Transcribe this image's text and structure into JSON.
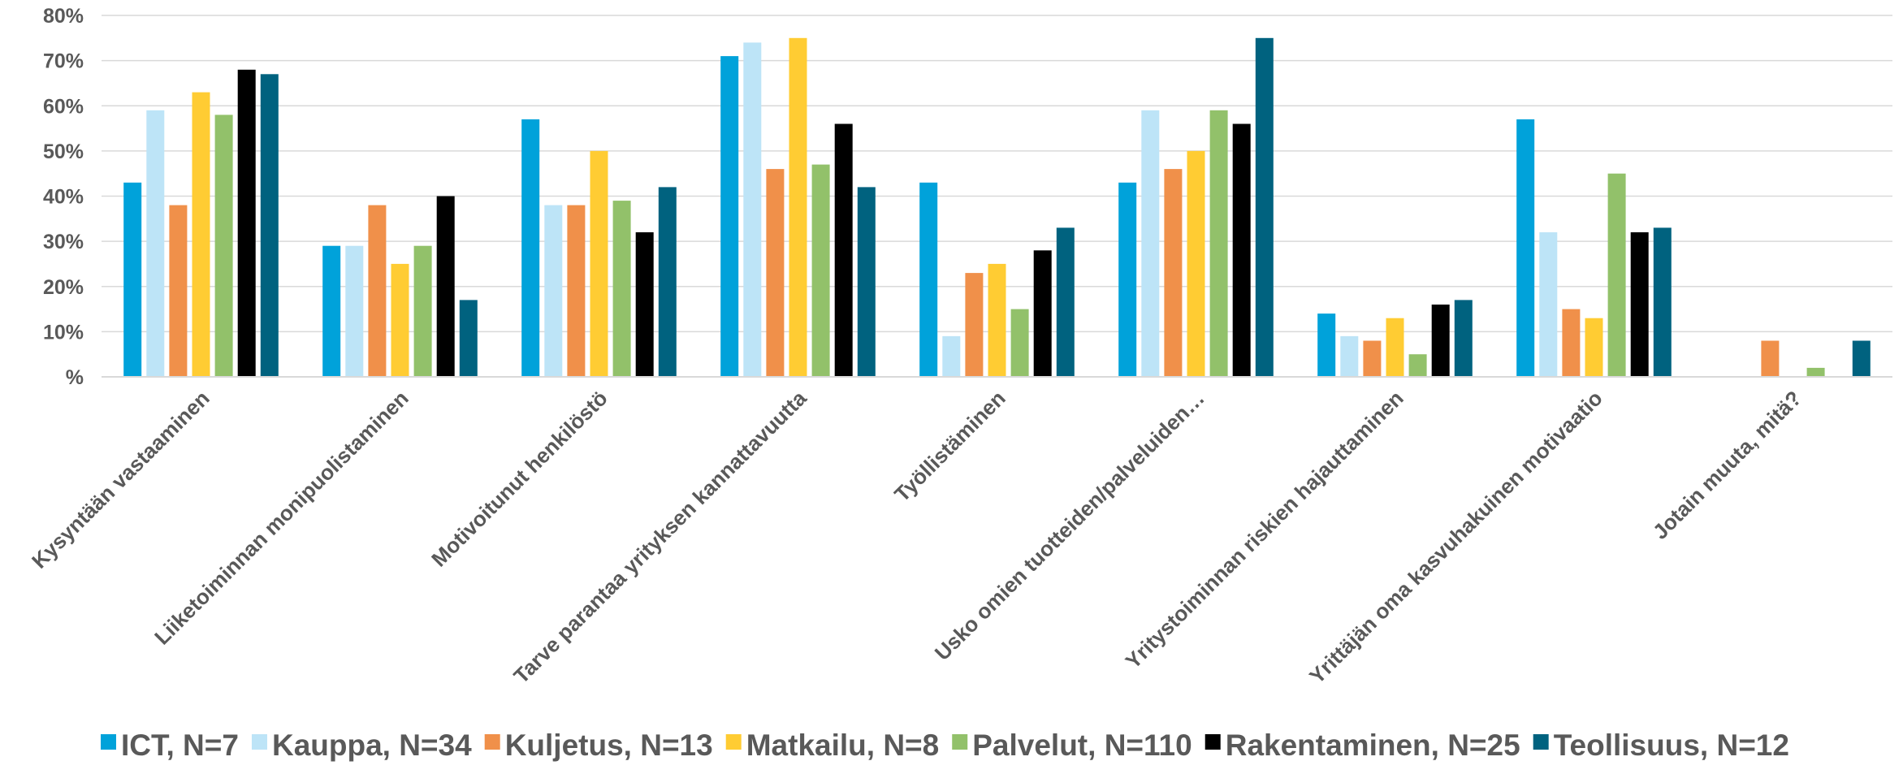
{
  "chart_data": {
    "type": "bar",
    "title": "",
    "xlabel": "",
    "ylabel": "",
    "ylim": [
      0,
      80
    ],
    "yticks": [
      0,
      10,
      20,
      30,
      40,
      50,
      60,
      70,
      80
    ],
    "ytick_labels": [
      "%",
      "10%",
      "20%",
      "30%",
      "40%",
      "50%",
      "60%",
      "70%",
      "80%"
    ],
    "grid": true,
    "legend_position": "bottom",
    "categories": [
      "Kysyntään vastaaminen",
      "Liiketoiminnan monipuolistaminen",
      "Motivoitunut henkilöstö",
      "Tarve parantaa yrityksen kannattavuutta",
      "Työllistäminen",
      "Usko omien tuotteiden/palveluiden…",
      "Yritystoiminnan riskien hajauttaminen",
      "Yrittäjän oma kasvuhakuinen motivaatio",
      "Jotain muuta, mitä?"
    ],
    "series": [
      {
        "name": "ICT, N=7",
        "color": "#00A2DA",
        "values": [
          43,
          29,
          57,
          71,
          43,
          43,
          14,
          57,
          0
        ]
      },
      {
        "name": "Kauppa, N=34",
        "color": "#BDE4F7",
        "values": [
          59,
          29,
          38,
          74,
          9,
          59,
          9,
          32,
          0
        ]
      },
      {
        "name": "Kuljetus, N=13",
        "color": "#F0904A",
        "values": [
          38,
          38,
          38,
          46,
          23,
          46,
          8,
          15,
          8
        ]
      },
      {
        "name": "Matkailu, N=8",
        "color": "#FFCC33",
        "values": [
          63,
          25,
          50,
          75,
          25,
          50,
          13,
          13,
          0
        ]
      },
      {
        "name": "Palvelut, N=110",
        "color": "#92C16A",
        "values": [
          58,
          29,
          39,
          47,
          15,
          59,
          5,
          45,
          2
        ]
      },
      {
        "name": "Rakentaminen, N=25",
        "color": "#000000",
        "values": [
          68,
          40,
          32,
          56,
          28,
          56,
          16,
          32,
          0
        ]
      },
      {
        "name": "Teollisuus, N=12",
        "color": "#00627F",
        "values": [
          67,
          17,
          42,
          42,
          33,
          75,
          17,
          33,
          8
        ]
      }
    ]
  }
}
